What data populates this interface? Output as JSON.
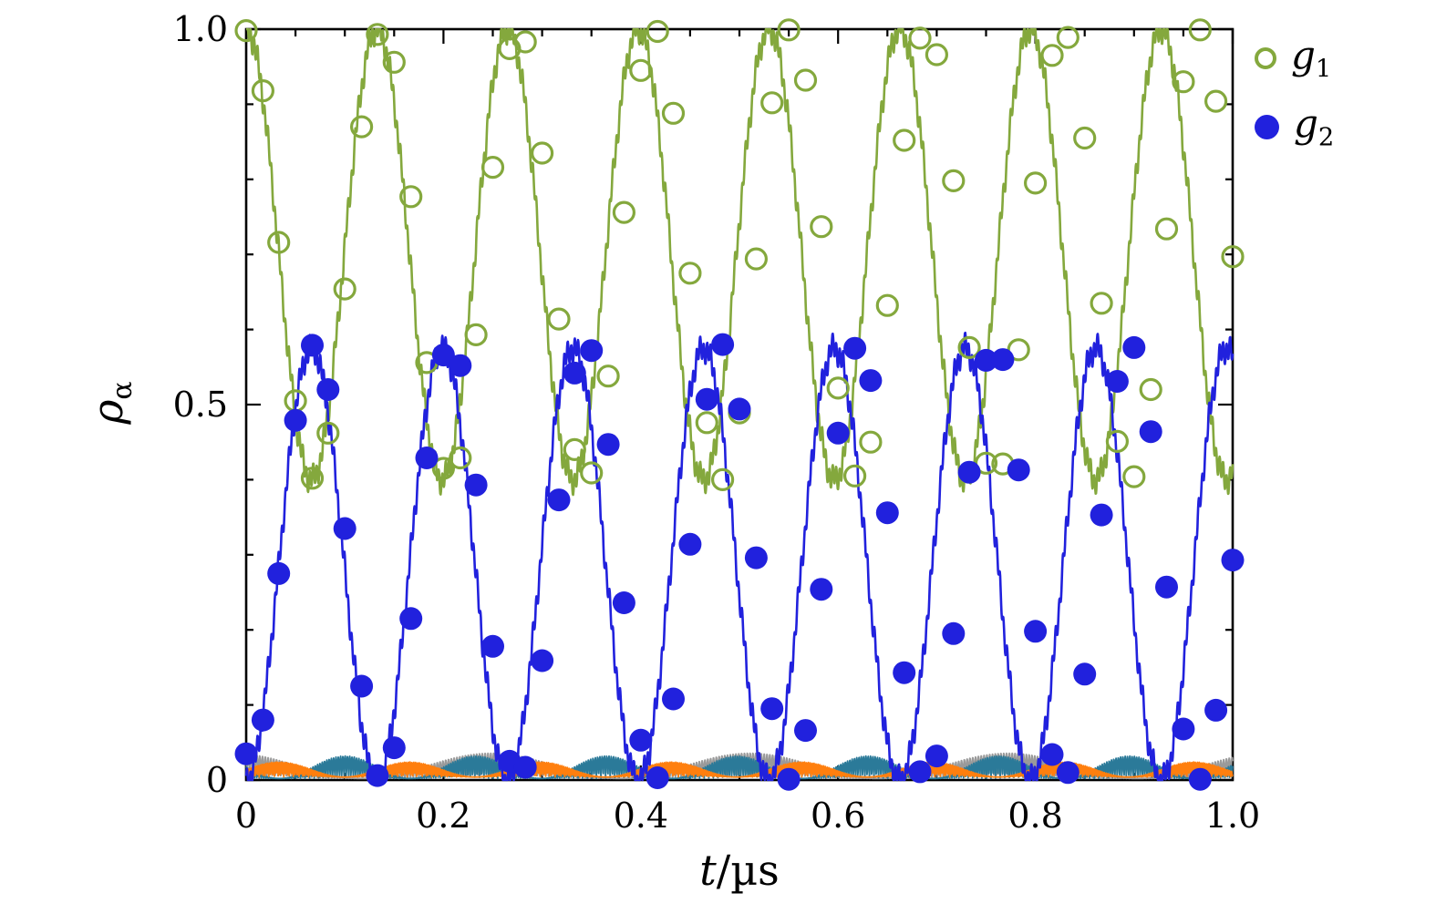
{
  "figure": {
    "background": "#ffffff",
    "frame_color": "#000000"
  },
  "axes": {
    "xlim": [
      0,
      1.0
    ],
    "ylim": [
      0,
      1.0
    ],
    "xlabel": {
      "variable": "t",
      "separator": "/",
      "unit": "µs",
      "text": "t/µs"
    },
    "ylabel": {
      "base": "ρ",
      "subscript": "α",
      "text": "ρα"
    },
    "x_major_ticks": [
      0,
      0.2,
      0.4,
      0.6,
      0.8,
      1.0
    ],
    "x_tick_labels": [
      "0",
      "0.2",
      "0.4",
      "0.6",
      "0.8",
      "1.0"
    ],
    "x_minor_step": 0.05,
    "y_major_ticks": [
      0,
      0.5,
      1.0
    ],
    "y_tick_labels": [
      "0",
      "0.5",
      "1.0"
    ],
    "y_minor_step": 0.1,
    "grid": false
  },
  "legend": {
    "position": "outside-top-right",
    "entries": [
      {
        "label": "g1",
        "label_base": "g",
        "label_sub": "1",
        "marker": "open-circle",
        "color": "#84a83d"
      },
      {
        "label": "g2",
        "label_base": "g",
        "label_sub": "2",
        "marker": "filled-circle",
        "color": "#2121dd"
      }
    ]
  },
  "chart_data": {
    "type": "line",
    "title": "",
    "xlabel": "t/µs",
    "ylabel": "ρ_α",
    "xlim": [
      0,
      1.0
    ],
    "ylim": [
      0,
      1.0
    ],
    "description": "Populations ρ_α of ground states g1 (green, oscillating between ≈0.4 and 1.0) and g2 (blue, oscillating between 0 and ≈0.58) versus time; Rabi period ≈0.1325 µs, about 7.5 cycles over 1 µs. Small residual populations (orange, teal, gray noisy traces) stay below ≈0.04. Open green circles and filled blue circles are sampled data points drifting in phase relative to the solid curves.",
    "lines": [
      {
        "name": "residual-gray",
        "kind": "noise",
        "color": "#9a9a9a",
        "width": 1.8,
        "base": 0.002,
        "env": 0.034,
        "env_period": 0.262,
        "env_phase": 1.9,
        "fast": 175,
        "fast_phase": 2.2,
        "clip": [
          0.001,
          1
        ]
      },
      {
        "name": "residual-teal",
        "kind": "noise",
        "color": "#2b7a99",
        "width": 1.8,
        "base": 0.002,
        "env": 0.03,
        "env_period": 0.1325,
        "env_phase": 3.1,
        "fast": 215,
        "fast_phase": 1.1,
        "clip": [
          0.001,
          1
        ]
      },
      {
        "name": "residual-orange",
        "kind": "noise",
        "color": "#ff7f0e",
        "width": 1.8,
        "base": 0.004,
        "env": 0.02,
        "env_period": 0.1325,
        "env_phase": 0.0,
        "fast": 260,
        "fast_phase": 0.4,
        "clip": [
          0.001,
          1
        ]
      },
      {
        "name": "g1-line",
        "kind": "cos",
        "color": "#84a83d",
        "width": 2.6,
        "offset": 0.7,
        "amp": 0.3,
        "period": 0.1325,
        "ripple": {
          "a1": 0.013,
          "f1": 283,
          "a2": 0.008,
          "f2": 89,
          "p2": 1.3
        },
        "clip": [
          0,
          1
        ]
      },
      {
        "name": "g2-line",
        "kind": "cos",
        "color": "#2121dd",
        "width": 2.6,
        "offset": 0.2875,
        "amp": -0.2875,
        "period": 0.1325,
        "ripple": {
          "a1": 0.013,
          "f1": 283,
          "a2": 0.008,
          "f2": 89,
          "p2": 2.4
        },
        "clip": [
          0,
          1
        ]
      }
    ],
    "scatter": {
      "t": [
        0.0,
        0.017,
        0.033,
        0.05,
        0.067,
        0.083,
        0.1,
        0.117,
        0.133,
        0.15,
        0.167,
        0.183,
        0.2,
        0.217,
        0.233,
        0.25,
        0.267,
        0.283,
        0.3,
        0.317,
        0.333,
        0.35,
        0.367,
        0.383,
        0.4,
        0.417,
        0.433,
        0.45,
        0.467,
        0.483,
        0.5,
        0.517,
        0.533,
        0.55,
        0.567,
        0.583,
        0.6,
        0.617,
        0.633,
        0.65,
        0.667,
        0.683,
        0.7,
        0.717,
        0.733,
        0.75,
        0.767,
        0.783,
        0.8,
        0.817,
        0.833,
        0.85,
        0.867,
        0.883,
        0.9,
        0.917,
        0.933,
        0.95,
        0.967,
        0.983,
        1.0
      ],
      "series": [
        {
          "name": "g1",
          "marker": "open-circle",
          "color": "#84a83d",
          "radius": 11,
          "stroke_width": 3.2,
          "values": [
            0.998,
            0.918,
            0.716,
            0.505,
            0.402,
            0.462,
            0.654,
            0.87,
            0.993,
            0.956,
            0.777,
            0.556,
            0.415,
            0.429,
            0.593,
            0.816,
            0.974,
            0.983,
            0.835,
            0.614,
            0.44,
            0.409,
            0.538,
            0.756,
            0.945,
            0.997,
            0.888,
            0.675,
            0.476,
            0.4,
            0.489,
            0.694,
            0.902,
            0.999,
            0.932,
            0.737,
            0.522,
            0.405,
            0.45,
            0.632,
            0.852,
            0.988,
            0.966,
            0.798,
            0.576,
            0.422,
            0.421,
            0.573,
            0.795,
            0.965,
            0.989,
            0.855,
            0.635,
            0.451,
            0.404,
            0.52,
            0.734,
            0.93,
            0.999,
            0.904,
            0.697
          ]
        },
        {
          "name": "g2",
          "marker": "filled-circle",
          "color": "#2121dd",
          "radius": 12.5,
          "stroke_width": 0,
          "values": [
            0.035,
            0.08,
            0.275,
            0.479,
            0.579,
            0.52,
            0.335,
            0.125,
            0.006,
            0.043,
            0.215,
            0.429,
            0.566,
            0.552,
            0.393,
            0.178,
            0.025,
            0.017,
            0.159,
            0.373,
            0.542,
            0.572,
            0.447,
            0.236,
            0.053,
            0.003,
            0.108,
            0.314,
            0.507,
            0.58,
            0.494,
            0.296,
            0.095,
            0.001,
            0.066,
            0.254,
            0.462,
            0.575,
            0.532,
            0.356,
            0.143,
            0.011,
            0.032,
            0.195,
            0.41,
            0.559,
            0.56,
            0.413,
            0.198,
            0.034,
            0.01,
            0.141,
            0.353,
            0.531,
            0.576,
            0.464,
            0.257,
            0.068,
            0.001,
            0.093,
            0.293
          ]
        }
      ]
    }
  }
}
